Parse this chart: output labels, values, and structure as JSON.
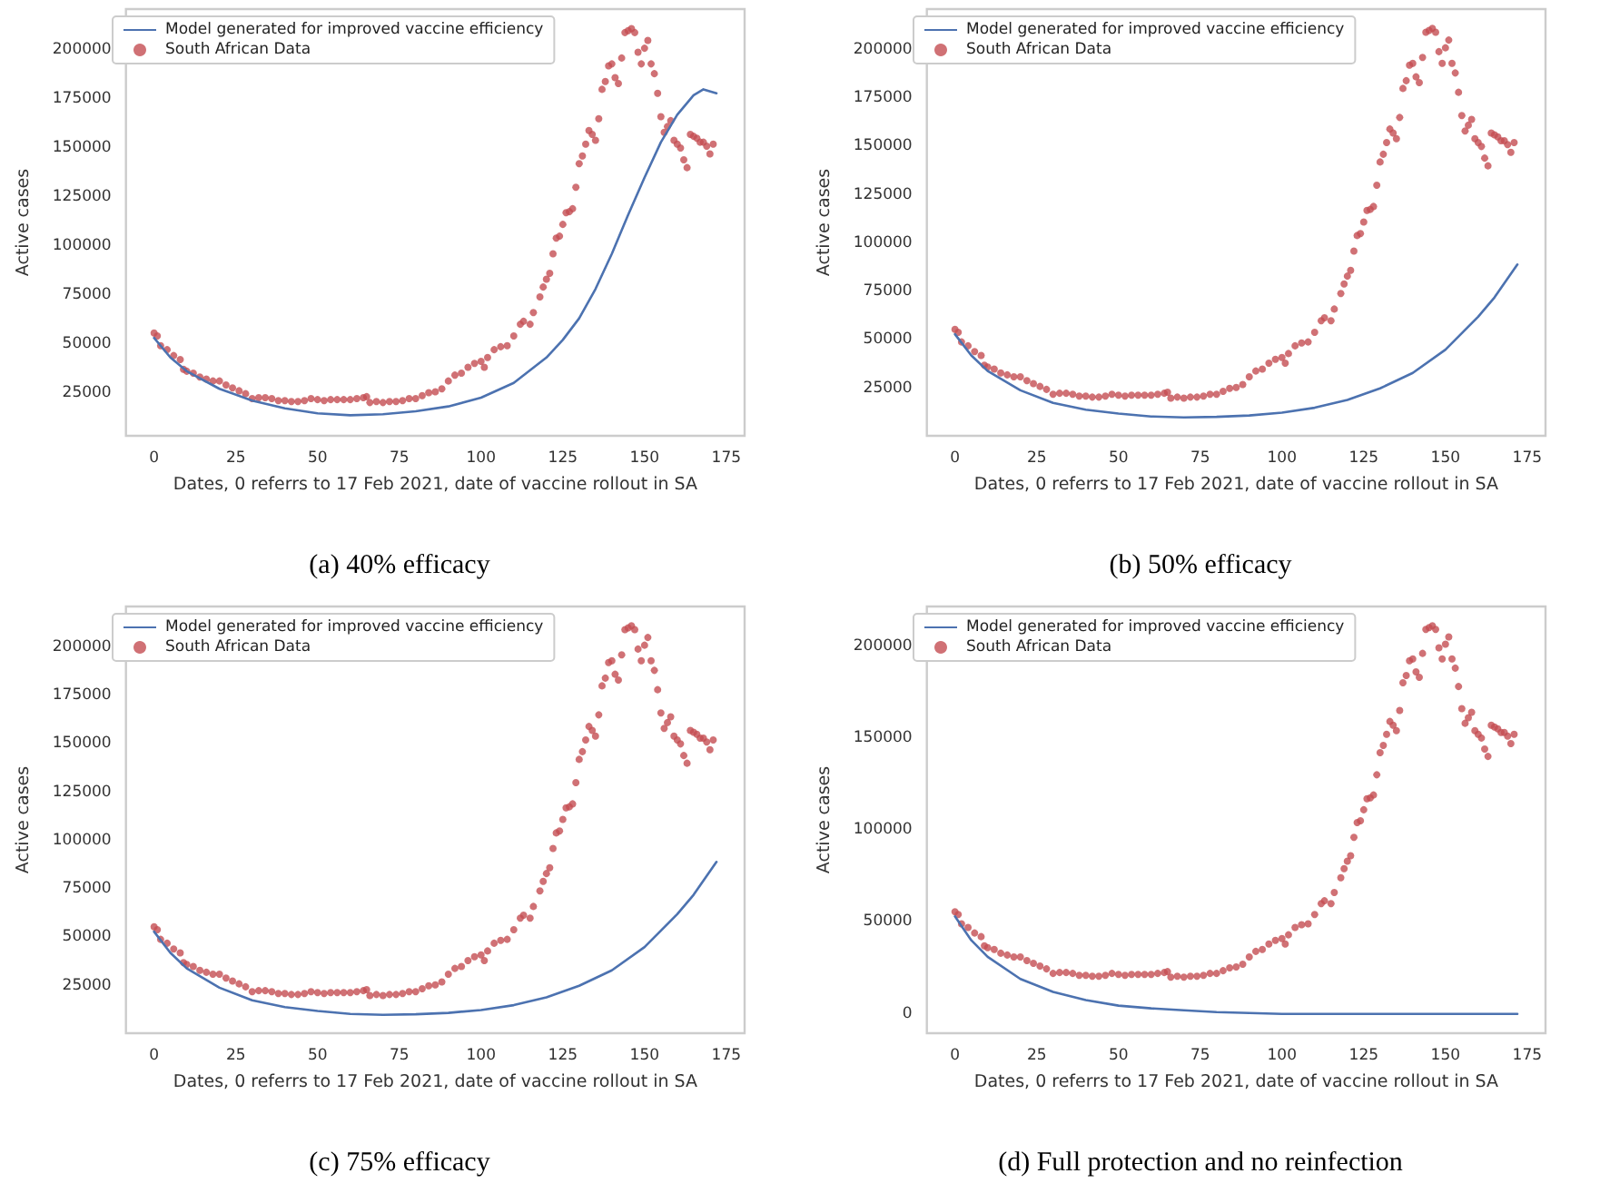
{
  "chart_data": [
    {
      "type": "line",
      "title": "(a) 40% efficacy",
      "xlabel": "Dates, 0 referrs to 17 Feb 2021, date of vaccine rollout in SA",
      "ylabel": "Active cases",
      "xlim": [
        -8.6,
        180.6
      ],
      "xticks": [
        0,
        25,
        50,
        75,
        100,
        125,
        150,
        175
      ],
      "ylim": [
        3000,
        221000
      ],
      "yticks": [
        25000,
        50000,
        75000,
        100000,
        125000,
        150000,
        175000,
        200000
      ],
      "grid": false,
      "legend": "top left",
      "series": [
        {
          "name": "Model generated for improved vaccine efficiency",
          "type": "line",
          "marker": "none",
          "line_style": "solid",
          "color": "#4c72b0",
          "x": [
            0,
            5,
            10,
            20,
            30,
            40,
            50,
            60,
            70,
            80,
            90,
            100,
            110,
            120,
            125,
            130,
            135,
            140,
            145,
            150,
            155,
            160,
            165,
            168,
            172
          ],
          "values": [
            53000,
            43000,
            36000,
            27000,
            21000,
            17000,
            14500,
            13500,
            14000,
            15500,
            18000,
            22500,
            30000,
            43000,
            52000,
            63000,
            78000,
            96000,
            116000,
            135000,
            153000,
            167000,
            177000,
            180000,
            178000
          ]
        },
        {
          "name": "South African Data",
          "type": "scatter",
          "marker": "circle",
          "color": "#c44e52",
          "x": [
            0,
            1,
            2,
            4,
            6,
            8,
            9,
            10,
            12,
            14,
            16,
            18,
            20,
            22,
            24,
            26,
            28,
            30,
            32,
            34,
            36,
            38,
            40,
            42,
            44,
            46,
            48,
            50,
            52,
            54,
            56,
            58,
            60,
            62,
            64,
            65,
            66,
            68,
            70,
            72,
            74,
            76,
            78,
            80,
            82,
            84,
            86,
            88,
            90,
            92,
            94,
            96,
            98,
            100,
            101,
            102,
            104,
            106,
            108,
            110,
            112,
            113,
            115,
            116,
            118,
            119,
            120,
            121,
            122,
            123,
            124,
            125,
            126,
            127,
            128,
            129,
            130,
            131,
            132,
            133,
            134,
            135,
            136,
            137,
            138,
            139,
            140,
            141,
            142,
            143,
            144,
            145,
            146,
            147,
            148,
            149,
            150,
            151,
            152,
            153,
            154,
            155,
            156,
            157,
            158,
            159,
            160,
            161,
            162,
            163,
            164,
            165,
            166,
            167,
            168,
            169,
            170,
            171
          ],
          "values": [
            55500,
            54000,
            49000,
            47000,
            44000,
            42000,
            37000,
            36000,
            35000,
            33000,
            32000,
            31000,
            31000,
            29000,
            27500,
            26000,
            24500,
            22000,
            22500,
            22500,
            22000,
            21000,
            21000,
            20500,
            20500,
            21000,
            22000,
            21500,
            21000,
            21500,
            21500,
            21500,
            21500,
            22000,
            22500,
            23000,
            20000,
            20500,
            20000,
            20500,
            20500,
            21000,
            22000,
            22000,
            23500,
            25000,
            25500,
            27000,
            31000,
            34000,
            35000,
            38000,
            40000,
            41000,
            38000,
            43000,
            47000,
            48500,
            49000,
            54000,
            60000,
            61500,
            60000,
            66000,
            74000,
            79000,
            83000,
            86000,
            96000,
            104000,
            105000,
            111000,
            117000,
            117500,
            119000,
            130000,
            142000,
            146000,
            152000,
            159000,
            157000,
            154000,
            165000,
            180000,
            184000,
            192000,
            193000,
            186000,
            183000,
            196000,
            209000,
            210000,
            211000,
            209000,
            199000,
            193000,
            201000,
            205000,
            193000,
            188000,
            178000,
            166000,
            158000,
            161000,
            164000,
            154000,
            152000,
            150000,
            144000,
            140000,
            157000,
            156000,
            155000,
            153000,
            153000,
            151000,
            147000,
            152000
          ]
        }
      ]
    },
    {
      "type": "line",
      "title": "(b) 50% efficacy",
      "xlabel": "Dates, 0 referrs to 17 Feb 2021, date of vaccine rollout in SA",
      "ylabel": "Active cases",
      "xlim": [
        -8.6,
        180.6
      ],
      "xticks": [
        0,
        25,
        50,
        75,
        100,
        125,
        150,
        175
      ],
      "ylim": [
        500,
        221000
      ],
      "yticks": [
        25000,
        50000,
        75000,
        100000,
        125000,
        150000,
        175000,
        200000
      ],
      "grid": false,
      "legend": "top left",
      "series": [
        {
          "name": "Model generated for improved vaccine efficiency",
          "type": "line",
          "marker": "none",
          "line_style": "solid",
          "color": "#4c72b0",
          "x": [
            0,
            5,
            10,
            20,
            30,
            40,
            50,
            60,
            70,
            80,
            90,
            100,
            110,
            120,
            130,
            140,
            150,
            160,
            165,
            172
          ],
          "values": [
            53000,
            42000,
            34000,
            24000,
            17500,
            14000,
            12000,
            10500,
            10000,
            10300,
            11000,
            12500,
            15000,
            19000,
            25000,
            33000,
            45000,
            62000,
            72000,
            89000
          ]
        },
        {
          "name": "South African Data",
          "type": "scatter",
          "marker": "circle",
          "color": "#c44e52",
          "x": [
            0,
            1,
            2,
            4,
            6,
            8,
            9,
            10,
            12,
            14,
            16,
            18,
            20,
            22,
            24,
            26,
            28,
            30,
            32,
            34,
            36,
            38,
            40,
            42,
            44,
            46,
            48,
            50,
            52,
            54,
            56,
            58,
            60,
            62,
            64,
            65,
            66,
            68,
            70,
            72,
            74,
            76,
            78,
            80,
            82,
            84,
            86,
            88,
            90,
            92,
            94,
            96,
            98,
            100,
            101,
            102,
            104,
            106,
            108,
            110,
            112,
            113,
            115,
            116,
            118,
            119,
            120,
            121,
            122,
            123,
            124,
            125,
            126,
            127,
            128,
            129,
            130,
            131,
            132,
            133,
            134,
            135,
            136,
            137,
            138,
            139,
            140,
            141,
            142,
            143,
            144,
            145,
            146,
            147,
            148,
            149,
            150,
            151,
            152,
            153,
            154,
            155,
            156,
            157,
            158,
            159,
            160,
            161,
            162,
            163,
            164,
            165,
            166,
            167,
            168,
            169,
            170,
            171
          ],
          "values": [
            55500,
            54000,
            49000,
            47000,
            44000,
            42000,
            37000,
            36000,
            35000,
            33000,
            32000,
            31000,
            31000,
            29000,
            27500,
            26000,
            24500,
            22000,
            22500,
            22500,
            22000,
            21000,
            21000,
            20500,
            20500,
            21000,
            22000,
            21500,
            21000,
            21500,
            21500,
            21500,
            21500,
            22000,
            22500,
            23000,
            20000,
            20500,
            20000,
            20500,
            20500,
            21000,
            22000,
            22000,
            23500,
            25000,
            25500,
            27000,
            31000,
            34000,
            35000,
            38000,
            40000,
            41000,
            38000,
            43000,
            47000,
            48500,
            49000,
            54000,
            60000,
            61500,
            60000,
            66000,
            74000,
            79000,
            83000,
            86000,
            96000,
            104000,
            105000,
            111000,
            117000,
            117500,
            119000,
            130000,
            142000,
            146000,
            152000,
            159000,
            157000,
            154000,
            165000,
            180000,
            184000,
            192000,
            193000,
            186000,
            183000,
            196000,
            209000,
            210000,
            211000,
            209000,
            199000,
            193000,
            201000,
            205000,
            193000,
            188000,
            178000,
            166000,
            158000,
            161000,
            164000,
            154000,
            152000,
            150000,
            144000,
            140000,
            157000,
            156000,
            155000,
            153000,
            153000,
            151000,
            147000,
            152000
          ]
        }
      ]
    },
    {
      "type": "line",
      "title": "(c) 75% efficacy",
      "xlabel": "Dates, 0 referrs to 17 Feb 2021, date of vaccine rollout in SA",
      "ylabel": "Active cases",
      "xlim": [
        -8.6,
        180.6
      ],
      "xticks": [
        0,
        25,
        50,
        75,
        100,
        125,
        150,
        175
      ],
      "ylim": [
        500,
        221000
      ],
      "yticks": [
        25000,
        50000,
        75000,
        100000,
        125000,
        150000,
        175000,
        200000
      ],
      "grid": false,
      "legend": "top left",
      "series": [
        {
          "name": "Model generated for improved vaccine efficiency",
          "type": "line",
          "marker": "none",
          "line_style": "solid",
          "color": "#4c72b0",
          "x": [
            0,
            5,
            10,
            20,
            30,
            40,
            50,
            60,
            70,
            80,
            90,
            100,
            110,
            120,
            130,
            140,
            150,
            160,
            165,
            172
          ],
          "values": [
            53000,
            42000,
            34000,
            24000,
            17500,
            14000,
            12000,
            10500,
            10000,
            10300,
            11000,
            12500,
            15000,
            19000,
            25000,
            33000,
            45000,
            62000,
            72000,
            89000
          ]
        },
        {
          "name": "South African Data",
          "type": "scatter",
          "marker": "circle",
          "color": "#c44e52",
          "x": [
            0,
            1,
            2,
            4,
            6,
            8,
            9,
            10,
            12,
            14,
            16,
            18,
            20,
            22,
            24,
            26,
            28,
            30,
            32,
            34,
            36,
            38,
            40,
            42,
            44,
            46,
            48,
            50,
            52,
            54,
            56,
            58,
            60,
            62,
            64,
            65,
            66,
            68,
            70,
            72,
            74,
            76,
            78,
            80,
            82,
            84,
            86,
            88,
            90,
            92,
            94,
            96,
            98,
            100,
            101,
            102,
            104,
            106,
            108,
            110,
            112,
            113,
            115,
            116,
            118,
            119,
            120,
            121,
            122,
            123,
            124,
            125,
            126,
            127,
            128,
            129,
            130,
            131,
            132,
            133,
            134,
            135,
            136,
            137,
            138,
            139,
            140,
            141,
            142,
            143,
            144,
            145,
            146,
            147,
            148,
            149,
            150,
            151,
            152,
            153,
            154,
            155,
            156,
            157,
            158,
            159,
            160,
            161,
            162,
            163,
            164,
            165,
            166,
            167,
            168,
            169,
            170,
            171
          ],
          "values": [
            55500,
            54000,
            49000,
            47000,
            44000,
            42000,
            37000,
            36000,
            35000,
            33000,
            32000,
            31000,
            31000,
            29000,
            27500,
            26000,
            24500,
            22000,
            22500,
            22500,
            22000,
            21000,
            21000,
            20500,
            20500,
            21000,
            22000,
            21500,
            21000,
            21500,
            21500,
            21500,
            21500,
            22000,
            22500,
            23000,
            20000,
            20500,
            20000,
            20500,
            20500,
            21000,
            22000,
            22000,
            23500,
            25000,
            25500,
            27000,
            31000,
            34000,
            35000,
            38000,
            40000,
            41000,
            38000,
            43000,
            47000,
            48500,
            49000,
            54000,
            60000,
            61500,
            60000,
            66000,
            74000,
            79000,
            83000,
            86000,
            96000,
            104000,
            105000,
            111000,
            117000,
            117500,
            119000,
            130000,
            142000,
            146000,
            152000,
            159000,
            157000,
            154000,
            165000,
            180000,
            184000,
            192000,
            193000,
            186000,
            183000,
            196000,
            209000,
            210000,
            211000,
            209000,
            199000,
            193000,
            201000,
            205000,
            193000,
            188000,
            178000,
            166000,
            158000,
            161000,
            164000,
            154000,
            152000,
            150000,
            144000,
            140000,
            157000,
            156000,
            155000,
            153000,
            153000,
            151000,
            147000,
            152000
          ]
        }
      ]
    },
    {
      "type": "line",
      "title": "(d) Full protection and no reinfection",
      "xlabel": "Dates, 0 referrs to 17 Feb 2021, date of vaccine rollout in SA",
      "ylabel": "Active cases",
      "xlim": [
        -8.6,
        180.6
      ],
      "xticks": [
        0,
        25,
        50,
        75,
        100,
        125,
        150,
        175
      ],
      "ylim": [
        -10500,
        221500
      ],
      "yticks": [
        0,
        50000,
        100000,
        150000,
        200000
      ],
      "grid": false,
      "legend": "top left",
      "series": [
        {
          "name": "Model generated for improved vaccine efficiency",
          "type": "line",
          "marker": "none",
          "line_style": "solid",
          "color": "#4c72b0",
          "x": [
            0,
            5,
            10,
            20,
            30,
            40,
            50,
            60,
            70,
            80,
            90,
            100,
            120,
            140,
            172
          ],
          "values": [
            53000,
            40000,
            31000,
            19000,
            12000,
            7500,
            4500,
            3000,
            2000,
            1000,
            500,
            0,
            0,
            0,
            0
          ]
        },
        {
          "name": "South African Data",
          "type": "scatter",
          "marker": "circle",
          "color": "#c44e52",
          "x": [
            0,
            1,
            2,
            4,
            6,
            8,
            9,
            10,
            12,
            14,
            16,
            18,
            20,
            22,
            24,
            26,
            28,
            30,
            32,
            34,
            36,
            38,
            40,
            42,
            44,
            46,
            48,
            50,
            52,
            54,
            56,
            58,
            60,
            62,
            64,
            65,
            66,
            68,
            70,
            72,
            74,
            76,
            78,
            80,
            82,
            84,
            86,
            88,
            90,
            92,
            94,
            96,
            98,
            100,
            101,
            102,
            104,
            106,
            108,
            110,
            112,
            113,
            115,
            116,
            118,
            119,
            120,
            121,
            122,
            123,
            124,
            125,
            126,
            127,
            128,
            129,
            130,
            131,
            132,
            133,
            134,
            135,
            136,
            137,
            138,
            139,
            140,
            141,
            142,
            143,
            144,
            145,
            146,
            147,
            148,
            149,
            150,
            151,
            152,
            153,
            154,
            155,
            156,
            157,
            158,
            159,
            160,
            161,
            162,
            163,
            164,
            165,
            166,
            167,
            168,
            169,
            170,
            171
          ],
          "values": [
            55500,
            54000,
            49000,
            47000,
            44000,
            42000,
            37000,
            36000,
            35000,
            33000,
            32000,
            31000,
            31000,
            29000,
            27500,
            26000,
            24500,
            22000,
            22500,
            22500,
            22000,
            21000,
            21000,
            20500,
            20500,
            21000,
            22000,
            21500,
            21000,
            21500,
            21500,
            21500,
            21500,
            22000,
            22500,
            23000,
            20000,
            20500,
            20000,
            20500,
            20500,
            21000,
            22000,
            22000,
            23500,
            25000,
            25500,
            27000,
            31000,
            34000,
            35000,
            38000,
            40000,
            41000,
            38000,
            43000,
            47000,
            48500,
            49000,
            54000,
            60000,
            61500,
            60000,
            66000,
            74000,
            79000,
            83000,
            86000,
            96000,
            104000,
            105000,
            111000,
            117000,
            117500,
            119000,
            130000,
            142000,
            146000,
            152000,
            159000,
            157000,
            154000,
            165000,
            180000,
            184000,
            192000,
            193000,
            186000,
            183000,
            196000,
            209000,
            210000,
            211000,
            209000,
            199000,
            193000,
            201000,
            205000,
            193000,
            188000,
            178000,
            166000,
            158000,
            161000,
            164000,
            154000,
            152000,
            150000,
            144000,
            140000,
            157000,
            156000,
            155000,
            153000,
            153000,
            151000,
            147000,
            152000
          ]
        }
      ]
    }
  ]
}
